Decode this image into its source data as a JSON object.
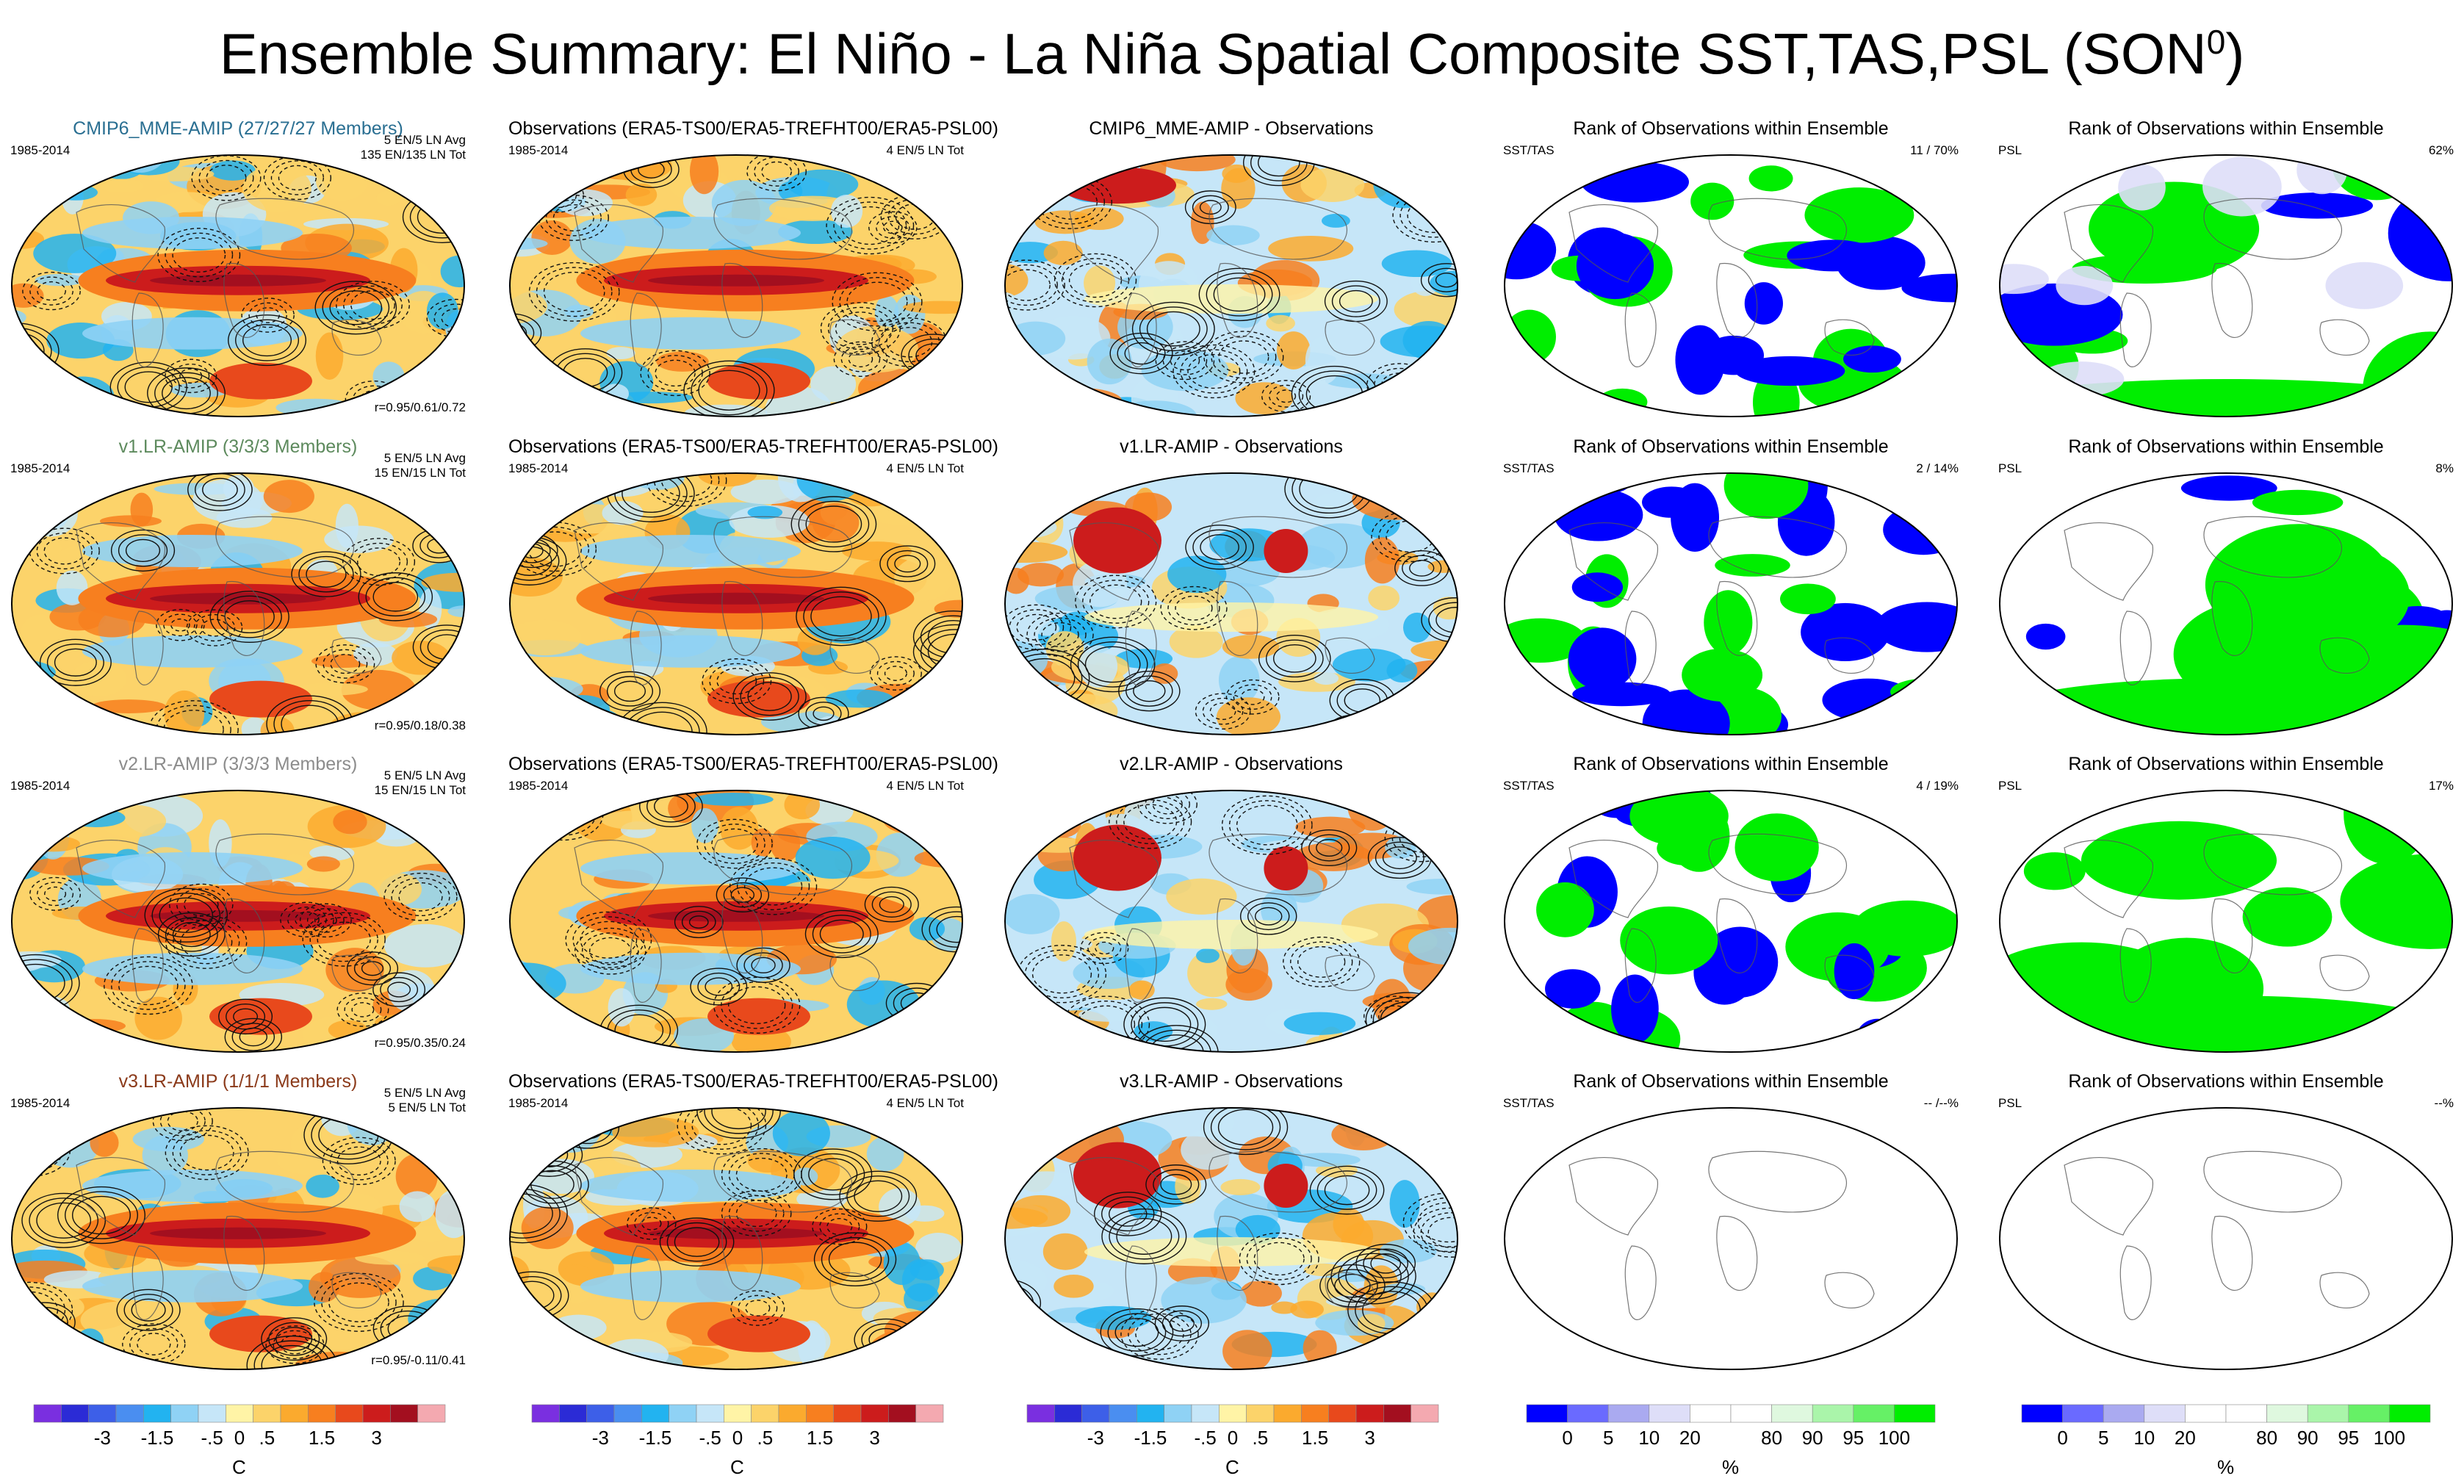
{
  "title": {
    "main": "Ensemble Summary: El Niño - La Niña Spatial Composite SST,TAS,PSL (SON",
    "superscript": "0",
    "close": ")"
  },
  "rows": [
    {
      "model": {
        "title": "CMIP6_MME-AMIP (27/27/27 Members)",
        "title_color": "#2a6f92",
        "period": "1985-2014",
        "info1": "5 EN/5 LN Avg",
        "info2": "135 EN/135 LN Tot",
        "corr": "r=0.95/0.61/0.72"
      },
      "obs": {
        "title": "Observations (ERA5-TS00/ERA5-TREFHT00/ERA5-PSL00)",
        "period": "1985-2014",
        "info": "4 EN/5 LN Tot"
      },
      "diff": {
        "title": "CMIP6_MME-AMIP - Observations"
      },
      "rank_sst": {
        "title": "Rank of Observations within Ensemble",
        "label": "SST/TAS",
        "value": "11 /  70%"
      },
      "rank_psl": {
        "title": "Rank of Observations within Ensemble",
        "label": "PSL",
        "value": "62%"
      }
    },
    {
      "model": {
        "title": "v1.LR-AMIP (3/3/3 Members)",
        "title_color": "#5d8a5d",
        "period": "1985-2014",
        "info1": "5 EN/5 LN Avg",
        "info2": "15 EN/15 LN Tot",
        "corr": "r=0.95/0.18/0.38"
      },
      "obs": {
        "title": "Observations (ERA5-TS00/ERA5-TREFHT00/ERA5-PSL00)",
        "period": "1985-2014",
        "info": "4 EN/5 LN Tot"
      },
      "diff": {
        "title": "v1.LR-AMIP - Observations"
      },
      "rank_sst": {
        "title": "Rank of Observations within Ensemble",
        "label": "SST/TAS",
        "value": "2 /  14%"
      },
      "rank_psl": {
        "title": "Rank of Observations within Ensemble",
        "label": "PSL",
        "value": "8%"
      }
    },
    {
      "model": {
        "title": "v2.LR-AMIP (3/3/3 Members)",
        "title_color": "#8c8c8c",
        "period": "1985-2014",
        "info1": "5 EN/5 LN Avg",
        "info2": "15 EN/15 LN Tot",
        "corr": "r=0.95/0.35/0.24"
      },
      "obs": {
        "title": "Observations (ERA5-TS00/ERA5-TREFHT00/ERA5-PSL00)",
        "period": "1985-2014",
        "info": "4 EN/5 LN Tot"
      },
      "diff": {
        "title": "v2.LR-AMIP - Observations"
      },
      "rank_sst": {
        "title": "Rank of Observations within Ensemble",
        "label": "SST/TAS",
        "value": "4 /  19%"
      },
      "rank_psl": {
        "title": "Rank of Observations within Ensemble",
        "label": "PSL",
        "value": "17%"
      }
    },
    {
      "model": {
        "title": "v3.LR-AMIP (1/1/1 Members)",
        "title_color": "#8b3a1a",
        "period": "1985-2014",
        "info1": "5 EN/5 LN Avg",
        "info2": "5 EN/5 LN Tot",
        "corr": "r=0.95/-0.11/0.41"
      },
      "obs": {
        "title": "Observations (ERA5-TS00/ERA5-TREFHT00/ERA5-PSL00)",
        "period": "1985-2014",
        "info": "4 EN/5 LN Tot"
      },
      "diff": {
        "title": "v3.LR-AMIP - Observations"
      },
      "rank_sst": {
        "title": "Rank of Observations within Ensemble",
        "label": "SST/TAS",
        "value": "-- /--%"
      },
      "rank_psl": {
        "title": "Rank of Observations within Ensemble",
        "label": "PSL",
        "value": "--%"
      }
    }
  ],
  "temp_colorbar": {
    "colors": [
      "#7a2fe0",
      "#2b2bd6",
      "#3d5fe8",
      "#4a8ef0",
      "#22b3f0",
      "#8fd2f5",
      "#c6e6f8",
      "#fff4a6",
      "#fcd36a",
      "#fbaa2e",
      "#f77f1f",
      "#e8491c",
      "#cc1c1c",
      "#a30f1f",
      "#f4a9b0"
    ],
    "labels": [
      "-3",
      "-1.5",
      "-.5",
      "0",
      ".5",
      "1.5",
      "3"
    ],
    "unit": "C"
  },
  "rank_colorbar": {
    "colors": [
      "#0000ff",
      "#6a6aff",
      "#aaaaf0",
      "#dedef8",
      "#ffffff",
      "#ffffff",
      "#dff8df",
      "#aaf5aa",
      "#66f066",
      "#00ee00"
    ],
    "labels": [
      "0",
      "5",
      "10",
      "20",
      "80",
      "90",
      "95",
      "100"
    ],
    "unit": "%"
  },
  "colors": {
    "warm": "#f28a20",
    "cold": "#4ea7e6",
    "enso_core": "#d62418",
    "rank_low": "#0000ff",
    "rank_high": "#00ee00"
  }
}
